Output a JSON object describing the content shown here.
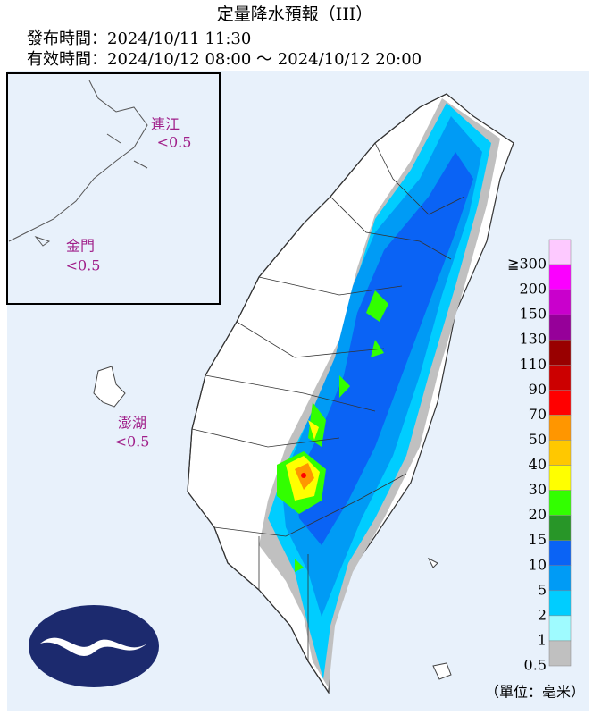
{
  "header": {
    "title": "定量降水預報（III）",
    "issued": "發布時間：2024/10/11 11:30",
    "valid": "有效時間：2024/10/12 08:00 ～ 2024/10/12 20:00"
  },
  "islands": [
    {
      "name": "連江",
      "value": "<0.5"
    },
    {
      "name": "金門",
      "value": "<0.5"
    },
    {
      "name": "澎湖",
      "value": "<0.5"
    }
  ],
  "legend": [
    {
      "label": "≧300",
      "color": "#fdc9ff"
    },
    {
      "label": "200",
      "color": "#fb00ff"
    },
    {
      "label": "150",
      "color": "#c900cc"
    },
    {
      "label": "130",
      "color": "#960099"
    },
    {
      "label": "110",
      "color": "#990000"
    },
    {
      "label": "90",
      "color": "#cc0000"
    },
    {
      "label": "70",
      "color": "#ff0000"
    },
    {
      "label": "50",
      "color": "#ff9600"
    },
    {
      "label": "40",
      "color": "#ffc800"
    },
    {
      "label": "30",
      "color": "#ffff00"
    },
    {
      "label": "20",
      "color": "#32ff00"
    },
    {
      "label": "15",
      "color": "#289628"
    },
    {
      "label": "10",
      "color": "#0a63f5"
    },
    {
      "label": "5",
      "color": "#009bf5"
    },
    {
      "label": "2",
      "color": "#00cdff"
    },
    {
      "label": "1",
      "color": "#9ffbff"
    },
    {
      "label": "0.5",
      "color": "#c0c0c0"
    }
  ],
  "unit": "（單位：毫米）"
}
